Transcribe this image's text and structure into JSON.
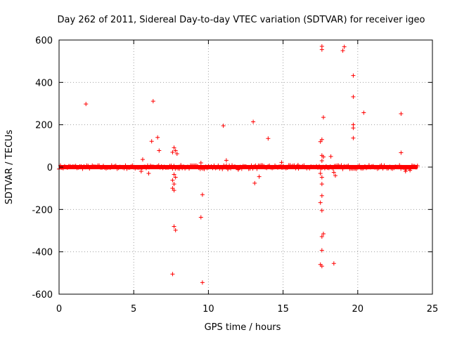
{
  "chart_data": {
    "type": "scatter",
    "title": "Day 262 of 2011, Sidereal Day-to-day VTEC variation (SDTVAR) for receiver igeo",
    "xlabel": "GPS time / hours",
    "ylabel": "SDTVAR / TECUs",
    "xlim": [
      0,
      25
    ],
    "ylim": [
      -600,
      600
    ],
    "xticks": [
      "0",
      "5",
      "10",
      "15",
      "20",
      "25"
    ],
    "yticks": [
      "-600",
      "-400",
      "-200",
      "0",
      "200",
      "400",
      "600"
    ],
    "grid": true,
    "marker": "+",
    "color": "#ff0000",
    "baseline_band": {
      "x_start": 0.0,
      "x_end": 24.0,
      "y_min": -10,
      "y_max": 10
    },
    "points": [
      [
        1.8,
        298
      ],
      [
        6.3,
        311
      ],
      [
        6.2,
        122
      ],
      [
        6.6,
        140
      ],
      [
        6.7,
        78
      ],
      [
        5.6,
        36
      ],
      [
        5.5,
        -20
      ],
      [
        6.0,
        -30
      ],
      [
        7.7,
        92
      ],
      [
        7.8,
        78
      ],
      [
        7.6,
        70
      ],
      [
        7.9,
        63
      ],
      [
        7.7,
        -35
      ],
      [
        7.8,
        -48
      ],
      [
        7.6,
        -62
      ],
      [
        7.7,
        -80
      ],
      [
        7.6,
        -100
      ],
      [
        7.7,
        -110
      ],
      [
        7.7,
        -280
      ],
      [
        7.8,
        -298
      ],
      [
        7.6,
        -505
      ],
      [
        9.5,
        20
      ],
      [
        9.6,
        -130
      ],
      [
        9.5,
        -237
      ],
      [
        9.6,
        -545
      ],
      [
        11.0,
        195
      ],
      [
        11.2,
        32
      ],
      [
        11.3,
        -10
      ],
      [
        13.0,
        214
      ],
      [
        13.1,
        -76
      ],
      [
        13.4,
        -45
      ],
      [
        14.0,
        135
      ],
      [
        14.9,
        22
      ],
      [
        17.6,
        570
      ],
      [
        17.6,
        555
      ],
      [
        17.7,
        235
      ],
      [
        17.6,
        130
      ],
      [
        17.5,
        120
      ],
      [
        17.6,
        55
      ],
      [
        17.7,
        48
      ],
      [
        17.6,
        30
      ],
      [
        17.5,
        -30
      ],
      [
        17.6,
        -48
      ],
      [
        17.6,
        -80
      ],
      [
        17.6,
        -135
      ],
      [
        17.5,
        -168
      ],
      [
        17.6,
        -205
      ],
      [
        17.7,
        -315
      ],
      [
        17.6,
        -328
      ],
      [
        17.6,
        -393
      ],
      [
        17.5,
        -460
      ],
      [
        17.6,
        -468
      ],
      [
        18.4,
        -455
      ],
      [
        18.2,
        50
      ],
      [
        18.4,
        -25
      ],
      [
        18.5,
        -40
      ],
      [
        19.1,
        568
      ],
      [
        19.0,
        550
      ],
      [
        19.7,
        432
      ],
      [
        19.7,
        332
      ],
      [
        19.7,
        200
      ],
      [
        19.7,
        185
      ],
      [
        19.7,
        137
      ],
      [
        20.4,
        257
      ],
      [
        22.9,
        252
      ],
      [
        22.9,
        68
      ],
      [
        23.2,
        -20
      ],
      [
        23.5,
        -15
      ],
      [
        12.0,
        -12
      ],
      [
        16.0,
        10
      ]
    ]
  }
}
